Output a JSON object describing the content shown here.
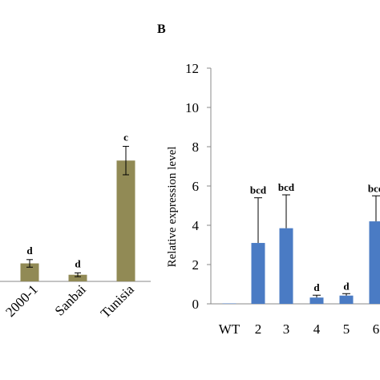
{
  "panel_label": "B",
  "chart_data": [
    {
      "type": "bar",
      "panel": "A (partially visible, left)",
      "categories": [
        "2000-1",
        "Sanbai",
        "Tunisia"
      ],
      "values": [
        0.38,
        0.14,
        2.55
      ],
      "errors": [
        0.08,
        0.04,
        0.3
      ],
      "significance": [
        "d",
        "d",
        "c"
      ],
      "ylim": [
        0,
        4.5
      ],
      "bar_color": "#918a55",
      "title": "",
      "xlabel": "",
      "ylabel": ""
    },
    {
      "type": "bar",
      "panel": "B",
      "categories": [
        "WT",
        "2",
        "3",
        "4",
        "5",
        "6"
      ],
      "values": [
        0.02,
        3.1,
        3.85,
        0.32,
        0.42,
        4.2
      ],
      "errors": [
        0,
        2.3,
        1.7,
        0.12,
        0.1,
        1.3
      ],
      "significance": [
        "",
        "bcd",
        "bcd",
        "d",
        "d",
        "bcd"
      ],
      "ylim": [
        0,
        12
      ],
      "yticks": [
        0,
        2,
        4,
        6,
        8,
        10,
        12
      ],
      "bar_color": "#4a7bc4",
      "title": "",
      "xlabel": "",
      "ylabel": "Relative expression level"
    }
  ]
}
